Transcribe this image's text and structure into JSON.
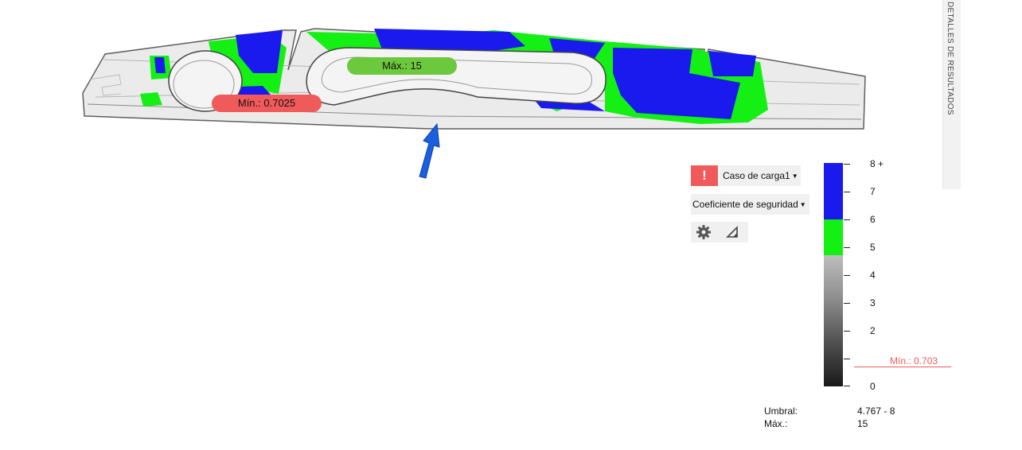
{
  "viewport": {
    "min_probe": "Mín.: 0.7025",
    "max_probe": "Máx.: 15",
    "colors": {
      "high": "#1a1aef",
      "mid": "#14f014",
      "body": "#ebebeb",
      "edge": "#5f5f5f",
      "arrow": "#1a5fe0",
      "min_badge": "#f05a5a",
      "max_badge": "#6cc83c"
    }
  },
  "side_panel": {
    "tab_label": "DETALLES DE RESULTADOS"
  },
  "controls": {
    "warning_icon": "!",
    "load_case": "Caso de carga1",
    "result_type": "Coeficiente de seguridad",
    "dropdown_caret": "▼",
    "settings_icon": "gear-icon",
    "probe_icon": "triangle-probe-icon"
  },
  "legend": {
    "labels": [
      "8 +",
      "7",
      "6",
      "5",
      "4",
      "3",
      "2",
      "0"
    ],
    "min_marker": "Mín.: 0.703",
    "min_value": 0.703,
    "scale_min": 0,
    "scale_max": 8,
    "bands": [
      {
        "from": 6,
        "to": 8,
        "color": "#1a1aef"
      },
      {
        "from": 5,
        "to": 6,
        "color": "#14f014"
      },
      {
        "from": 0,
        "to": 5,
        "color": "gray-gradient"
      }
    ]
  },
  "info": {
    "threshold_label": "Umbral:",
    "threshold_value": "4.767 - 8",
    "max_label": "Máx.:",
    "max_value": "15"
  }
}
